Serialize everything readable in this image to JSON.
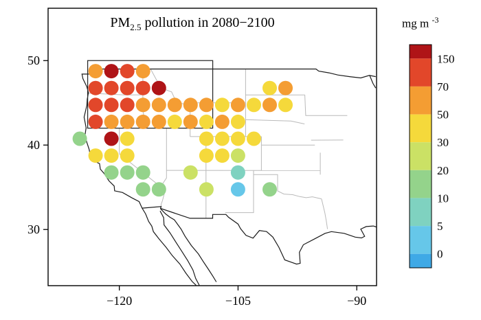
{
  "colors": {
    "background": "#ffffff",
    "frame": "#000000",
    "country_line": "#1a1a1a",
    "state_line": "#b9b9b9",
    "region_box": "#222222"
  },
  "chart_data": {
    "type": "scatter",
    "title": {
      "prefix": "PM",
      "subscript": "2.5",
      "suffix": " pollution in 2080−2100"
    },
    "colorbar": {
      "unit": {
        "text": "mg m",
        "superscript": "-3"
      },
      "tick_labels": [
        "150",
        "70",
        "50",
        "30",
        "20",
        "10",
        "5",
        "0"
      ],
      "thresholds": [
        150,
        70,
        50,
        30,
        20,
        10,
        5,
        0
      ],
      "colors_top_to_bottom": [
        "#AF1417",
        "#E2472A",
        "#F49D33",
        "#F5D93B",
        "#CBE165",
        "#94D38B",
        "#7FD2C0",
        "#66C7E9",
        "#3FA9E6"
      ]
    },
    "x_axis": {
      "tick_labels": [
        "−120",
        "−105",
        "−90"
      ],
      "tick_values": [
        -120,
        -105,
        -90
      ],
      "range": [
        -129,
        -87.5
      ]
    },
    "y_axis": {
      "tick_labels": [
        "50",
        "40",
        "30"
      ],
      "tick_values": [
        50,
        40,
        30
      ],
      "range": [
        23.35,
        56.2
      ]
    },
    "region_box": {
      "lon_min": -124,
      "lon_max": -108.2,
      "lat_min": 42,
      "lat_max": 50
    },
    "points": [
      [
        -123,
        48.75,
        55
      ],
      [
        -121,
        48.75,
        160
      ],
      [
        -119,
        48.75,
        110
      ],
      [
        -117,
        48.75,
        58
      ],
      [
        -123,
        46.75,
        95
      ],
      [
        -121,
        46.75,
        110
      ],
      [
        -119,
        46.75,
        90
      ],
      [
        -117,
        46.75,
        100
      ],
      [
        -115,
        46.75,
        160
      ],
      [
        -101,
        46.75,
        35
      ],
      [
        -99,
        46.75,
        55
      ],
      [
        -123,
        44.75,
        90
      ],
      [
        -121,
        44.75,
        110
      ],
      [
        -119,
        44.75,
        95
      ],
      [
        -117,
        44.75,
        60
      ],
      [
        -115,
        44.75,
        55
      ],
      [
        -113,
        44.75,
        58
      ],
      [
        -111,
        44.75,
        55
      ],
      [
        -109,
        44.75,
        52
      ],
      [
        -107,
        44.75,
        40
      ],
      [
        -105,
        44.75,
        55
      ],
      [
        -103,
        44.75,
        38
      ],
      [
        -101,
        44.75,
        55
      ],
      [
        -99,
        44.75,
        35
      ],
      [
        -123,
        42.75,
        100
      ],
      [
        -121,
        42.75,
        58
      ],
      [
        -119,
        42.75,
        55
      ],
      [
        -117,
        42.75,
        58
      ],
      [
        -115,
        42.75,
        55
      ],
      [
        -113,
        42.75,
        35
      ],
      [
        -111,
        42.75,
        55
      ],
      [
        -109,
        42.75,
        35
      ],
      [
        -107,
        42.75,
        55
      ],
      [
        -105,
        42.75,
        35
      ],
      [
        -125,
        40.75,
        14
      ],
      [
        -121,
        40.75,
        160
      ],
      [
        -119,
        40.75,
        35
      ],
      [
        -109,
        40.75,
        35
      ],
      [
        -107,
        40.75,
        35
      ],
      [
        -105,
        40.75,
        32
      ],
      [
        -103,
        40.75,
        45
      ],
      [
        -123,
        38.75,
        35
      ],
      [
        -121,
        38.75,
        36
      ],
      [
        -119,
        38.75,
        33
      ],
      [
        -109,
        38.75,
        35
      ],
      [
        -107,
        38.75,
        33
      ],
      [
        -105,
        38.75,
        30
      ],
      [
        -121,
        36.75,
        15
      ],
      [
        -119,
        36.75,
        16
      ],
      [
        -117,
        36.75,
        14
      ],
      [
        -111,
        36.75,
        24
      ],
      [
        -105,
        36.75,
        8
      ],
      [
        -117,
        34.75,
        13
      ],
      [
        -115,
        34.75,
        15
      ],
      [
        -109,
        34.75,
        24
      ],
      [
        -105,
        34.75,
        3
      ],
      [
        -101,
        34.75,
        13
      ]
    ],
    "map_outlines": {
      "country": [
        [
          [
            -123.25,
            49
          ],
          [
            -95.15,
            49
          ],
          [
            -94.8,
            48.75
          ],
          [
            -93.5,
            48.55
          ],
          [
            -92.4,
            48.3
          ],
          [
            -90.9,
            48.1
          ],
          [
            -89.5,
            47.95
          ],
          [
            -88.4,
            48.25
          ],
          [
            -87.6,
            48.1
          ]
        ],
        [
          [
            -88.35,
            48.2
          ],
          [
            -87.95,
            47.3
          ],
          [
            -87.6,
            46.75
          ]
        ],
        [
          [
            -123.25,
            49
          ],
          [
            -123.0,
            48.4
          ],
          [
            -124.72,
            48.4
          ],
          [
            -124.6,
            47.85
          ],
          [
            -124.1,
            46.9
          ],
          [
            -123.9,
            46.2
          ],
          [
            -124.05,
            45.45
          ],
          [
            -124.1,
            44.7
          ],
          [
            -124.45,
            43.3
          ],
          [
            -124.2,
            42.05
          ],
          [
            -124.35,
            41.1
          ],
          [
            -124.1,
            40.3
          ],
          [
            -123.82,
            39.5
          ],
          [
            -123.7,
            38.95
          ],
          [
            -122.95,
            38.0
          ],
          [
            -122.5,
            37.8
          ],
          [
            -122.4,
            37.15
          ],
          [
            -121.9,
            36.6
          ],
          [
            -121.3,
            35.75
          ],
          [
            -120.65,
            35.15
          ],
          [
            -120.6,
            34.58
          ],
          [
            -119.6,
            34.38
          ],
          [
            -118.4,
            33.74
          ],
          [
            -117.5,
            33.3
          ],
          [
            -117.12,
            32.53
          ]
        ],
        [
          [
            -117.12,
            32.53
          ],
          [
            -114.72,
            32.72
          ],
          [
            -114.8,
            32.5
          ],
          [
            -111.07,
            31.33
          ],
          [
            -108.21,
            31.33
          ],
          [
            -108.21,
            31.78
          ],
          [
            -106.53,
            31.78
          ],
          [
            -106.2,
            31.45
          ],
          [
            -105.0,
            30.65
          ],
          [
            -104.68,
            30.1
          ],
          [
            -104.0,
            29.3
          ],
          [
            -103.1,
            28.98
          ],
          [
            -102.3,
            29.88
          ],
          [
            -101.4,
            29.76
          ],
          [
            -100.6,
            29.1
          ],
          [
            -99.85,
            27.9
          ],
          [
            -99.1,
            26.4
          ],
          [
            -97.6,
            25.9
          ],
          [
            -97.15,
            26.0
          ],
          [
            -97.25,
            27.3
          ],
          [
            -96.75,
            28.2
          ],
          [
            -95.3,
            28.9
          ],
          [
            -94.0,
            29.55
          ],
          [
            -93.2,
            29.75
          ],
          [
            -91.6,
            29.55
          ],
          [
            -90.2,
            29.1
          ],
          [
            -89.4,
            29.0
          ],
          [
            -89.0,
            29.2
          ],
          [
            -89.5,
            30.05
          ],
          [
            -88.8,
            30.35
          ],
          [
            -87.9,
            30.42
          ],
          [
            -87.55,
            30.3
          ]
        ],
        [
          [
            -117.12,
            32.53
          ],
          [
            -116.68,
            31.85
          ],
          [
            -116.3,
            30.95
          ],
          [
            -115.9,
            30.4
          ],
          [
            -115.7,
            29.75
          ],
          [
            -115.0,
            28.9
          ],
          [
            -114.1,
            27.9
          ],
          [
            -113.3,
            26.9
          ],
          [
            -112.35,
            25.9
          ],
          [
            -111.6,
            24.85
          ],
          [
            -110.8,
            23.85
          ],
          [
            -110.3,
            23.4
          ]
        ],
        [
          [
            -114.85,
            32.2
          ],
          [
            -114.4,
            31.4
          ],
          [
            -114.35,
            30.55
          ],
          [
            -113.6,
            29.6
          ],
          [
            -112.85,
            28.5
          ],
          [
            -112.1,
            27.4
          ],
          [
            -111.35,
            26.3
          ],
          [
            -110.7,
            25.2
          ],
          [
            -110.35,
            24.2
          ],
          [
            -109.9,
            23.4
          ]
        ],
        [
          [
            -114.8,
            32.45
          ],
          [
            -114.15,
            31.85
          ],
          [
            -113.6,
            31.45
          ],
          [
            -113.05,
            31.15
          ],
          [
            -112.2,
            30.05
          ],
          [
            -111.7,
            29.2
          ],
          [
            -110.9,
            28.1
          ],
          [
            -110.0,
            27.1
          ],
          [
            -109.4,
            26.2
          ],
          [
            -108.75,
            25.3
          ],
          [
            -108.2,
            24.5
          ],
          [
            -107.75,
            23.8
          ]
        ]
      ],
      "states": [
        [
          [
            -123.9,
            46.15
          ],
          [
            -119.3,
            45.93
          ],
          [
            -116.95,
            45.95
          ]
        ],
        [
          [
            -117.03,
            49
          ],
          [
            -117.03,
            45.6
          ],
          [
            -116.6,
            45.3
          ],
          [
            -117.2,
            44.25
          ],
          [
            -116.95,
            43.8
          ],
          [
            -117.02,
            42.0
          ]
        ],
        [
          [
            -116.05,
            49
          ],
          [
            -115.3,
            47.7
          ],
          [
            -114.6,
            46.9
          ],
          [
            -114.3,
            46.6
          ],
          [
            -113.4,
            46.3
          ],
          [
            -113.0,
            45.5
          ],
          [
            -112.8,
            45.1
          ],
          [
            -111.4,
            44.75
          ],
          [
            -111.05,
            44.55
          ]
        ],
        [
          [
            -124.2,
            42
          ],
          [
            -111.05,
            42
          ]
        ],
        [
          [
            -120.0,
            42
          ],
          [
            -120.0,
            38.95
          ],
          [
            -114.63,
            34.95
          ]
        ],
        [
          [
            -114.04,
            42
          ],
          [
            -114.04,
            36.1
          ],
          [
            -114.75,
            35.1
          ],
          [
            -114.3,
            34.3
          ],
          [
            -114.55,
            33.4
          ],
          [
            -114.72,
            33.0
          ],
          [
            -114.72,
            32.72
          ]
        ],
        [
          [
            -111.05,
            45.0
          ],
          [
            -111.05,
            41.0
          ]
        ],
        [
          [
            -111.05,
            41
          ],
          [
            -102.05,
            41
          ]
        ],
        [
          [
            -104.05,
            49
          ],
          [
            -104.05,
            41
          ]
        ],
        [
          [
            -111.05,
            45
          ],
          [
            -104.05,
            45
          ]
        ],
        [
          [
            -114.04,
            37
          ],
          [
            -94.62,
            36.99
          ]
        ],
        [
          [
            -109.05,
            41
          ],
          [
            -109.05,
            31.33
          ]
        ],
        [
          [
            -102.05,
            41
          ],
          [
            -102.05,
            37
          ]
        ],
        [
          [
            -103.04,
            37
          ],
          [
            -103.04,
            32.0
          ],
          [
            -106.62,
            32.0
          ]
        ],
        [
          [
            -103.0,
            36.5
          ],
          [
            -100.0,
            36.5
          ],
          [
            -100.0,
            34.56
          ],
          [
            -99.2,
            34.2
          ],
          [
            -98.1,
            34.12
          ],
          [
            -97.2,
            33.9
          ],
          [
            -96.4,
            33.77
          ],
          [
            -95.6,
            33.87
          ],
          [
            -94.45,
            33.63
          ]
        ],
        [
          [
            -94.45,
            33.63
          ],
          [
            -94.04,
            31.99
          ],
          [
            -93.85,
            31.0
          ],
          [
            -93.7,
            30.05
          ]
        ],
        [
          [
            -104.05,
            45.94
          ],
          [
            -96.56,
            45.94
          ]
        ],
        [
          [
            -104.05,
            43.0
          ],
          [
            -98.3,
            42.85
          ],
          [
            -96.6,
            42.5
          ]
        ],
        [
          [
            -102.05,
            40.0
          ],
          [
            -95.3,
            40.0
          ]
        ],
        [
          [
            -96.56,
            45.94
          ],
          [
            -96.45,
            43.5
          ],
          [
            -91.2,
            43.5
          ]
        ],
        [
          [
            -95.77,
            40.58
          ],
          [
            -91.7,
            40.6
          ]
        ],
        [
          [
            -94.61,
            39.1
          ],
          [
            -94.61,
            36.5
          ]
        ]
      ]
    }
  }
}
